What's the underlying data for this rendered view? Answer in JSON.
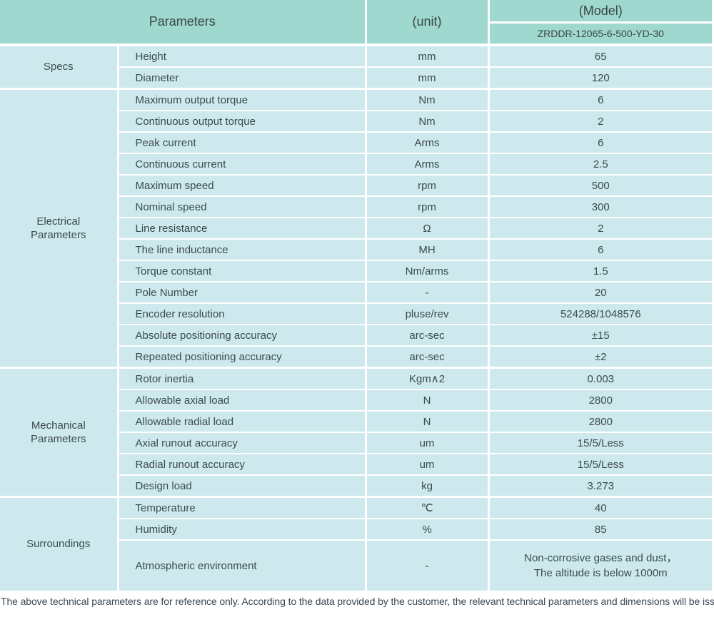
{
  "header": {
    "parameters_label": "Parameters",
    "unit_label": "(unit)",
    "model_label": "(Model)",
    "model_value": "ZRDDR-12065-6-500-YD-30"
  },
  "sections": [
    {
      "label": "Specs",
      "rows": [
        {
          "name": "Height",
          "unit": "mm",
          "value": "65"
        },
        {
          "name": "Diameter",
          "unit": "mm",
          "value": "120"
        }
      ]
    },
    {
      "label": "Electrical\nParameters",
      "rows": [
        {
          "name": "Maximum output torque",
          "unit": "Nm",
          "value": "6"
        },
        {
          "name": "Continuous output torque",
          "unit": "Nm",
          "value": "2"
        },
        {
          "name": "Peak current",
          "unit": "Arms",
          "value": "6"
        },
        {
          "name": "Continuous current",
          "unit": "Arms",
          "value": "2.5"
        },
        {
          "name": "Maximum speed",
          "unit": "rpm",
          "value": "500"
        },
        {
          "name": "Nominal speed",
          "unit": "rpm",
          "value": "300"
        },
        {
          "name": "Line resistance",
          "unit": "Ω",
          "value": "2"
        },
        {
          "name": "The line inductance",
          "unit": "MH",
          "value": "6"
        },
        {
          "name": "Torque constant",
          "unit": "Nm/arms",
          "value": "1.5"
        },
        {
          "name": "Pole Number",
          "unit": "-",
          "value": "20"
        },
        {
          "name": "Encoder resolution",
          "unit": "pluse/rev",
          "value": "524288/1048576"
        },
        {
          "name": "Absolute positioning accuracy",
          "unit": "arc-sec",
          "value": "±15"
        },
        {
          "name": "Repeated positioning accuracy",
          "unit": "arc-sec",
          "value": "±2"
        }
      ]
    },
    {
      "label": "Mechanical\nParameters",
      "rows": [
        {
          "name": "Rotor inertia",
          "unit": "Kgm∧2",
          "value": "0.003"
        },
        {
          "name": "Allowable axial load",
          "unit": "N",
          "value": "2800"
        },
        {
          "name": "Allowable radial load",
          "unit": "N",
          "value": "2800"
        },
        {
          "name": "Axial runout accuracy",
          "unit": "um",
          "value": "15/5/Less"
        },
        {
          "name": "Radial runout accuracy",
          "unit": "um",
          "value": "15/5/Less"
        },
        {
          "name": "Design load",
          "unit": "kg",
          "value": "3.273"
        }
      ]
    },
    {
      "label": "Surroundings",
      "rows": [
        {
          "name": "Temperature",
          "unit": "℃",
          "value": "40"
        },
        {
          "name": "Humidity",
          "unit": "%",
          "value": "85"
        },
        {
          "name": "Atmospheric environment",
          "unit": "-",
          "value": "Non-corrosive gases and dust，\nThe altitude is below 1000m",
          "tall": true
        }
      ]
    }
  ],
  "footer_note": "The above technical parameters are for reference only. According to the data provided by the customer, the relevant technical parameters and dimensions will be issued.",
  "colors": {
    "header_bg": "#9ed8cf",
    "row_bg": "#cde9ee",
    "divider": "#ffffff",
    "text": "#3c4a4d"
  }
}
